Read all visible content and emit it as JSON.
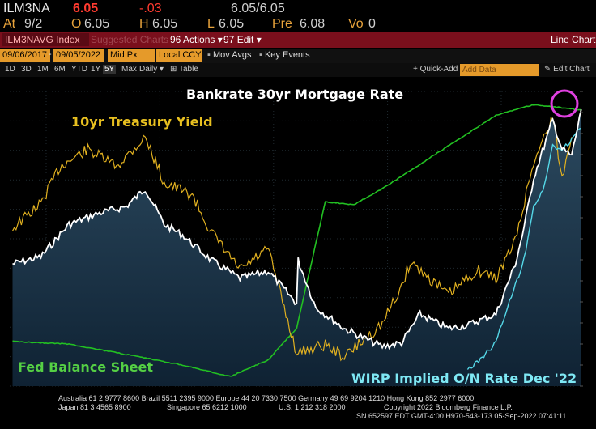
{
  "quote": {
    "ticker": "ILM3NA",
    "last": "6.05",
    "change": "-.03",
    "bid_ask": "6.05/6.05",
    "at_label": "At",
    "date": "9/2",
    "open_label": "O",
    "open": "6.05",
    "high_label": "H",
    "high": "6.05",
    "low_label": "L",
    "low": "6.05",
    "pre_label": "Pre",
    "pre": "6.08",
    "vol_label": "Vo",
    "vol": "0"
  },
  "toolbar": {
    "index": "ILM3NAVG Index",
    "suggested": "Suggested Charts",
    "actions": "Actions",
    "actions_num": "96",
    "edit": "Edit",
    "edit_num": "97",
    "view": "Line Chart"
  },
  "controls": {
    "start_date": "09/06/2017",
    "end_date": "09/05/2022",
    "price_field": "Mid Px",
    "currency": "Local CCY",
    "mov_avgs": "Mov Avgs",
    "key_events": "Key Events",
    "quick_add": "+ Quick-Add",
    "add_data": "Add Data",
    "edit_chart": "Edit Chart"
  },
  "periods": [
    "1D",
    "3D",
    "1M",
    "6M",
    "YTD",
    "1Y",
    "5Y",
    "Max",
    "Daily",
    "Table"
  ],
  "annotations": {
    "mortgage": "Bankrate 30yr Mortgage Rate",
    "treasury": "10yr Treasury Yield",
    "fed": "Fed Balance Sheet",
    "wirp": "WIRP Implied O/N Rate Dec '22"
  },
  "colors": {
    "mortgage": "#ffffff",
    "treasury": "#e0b020",
    "fed": "#22c022",
    "wirp": "#55d8e8",
    "area_top": "#2c4a60",
    "area_bottom": "#0f2233",
    "highlight_circle": "#e040e0",
    "toolbar_bg": "#7a0f1c",
    "field_bg": "#e59a2a"
  },
  "footer": {
    "line1": "Australia 61 2 9777 8600  Brazil 5511 2395 9000  Europe 44 20 7330 7500  Germany 49 69 9204 1210  Hong Kong 852 2977 6000",
    "line2a": "Japan 81 3 4565 8900",
    "line2b": "Singapore 65 6212 1000",
    "line2c": "U.S. 1 212 318 2000",
    "line2d": "Copyright 2022 Bloomberg Finance L.P.",
    "line3": "SN 652597 EDT  GMT-4:00 H970-543-173 05-Sep-2022 07:41:11"
  },
  "chart_data": {
    "type": "line",
    "x_range": [
      "2017-09-06",
      "2022-09-05"
    ],
    "grid": true,
    "series": [
      {
        "name": "Bankrate 30yr Mortgage Rate",
        "style": "white line with shaded area",
        "points": [
          [
            "2017-09",
            3.9
          ],
          [
            "2017-12",
            4.0
          ],
          [
            "2018-03",
            4.45
          ],
          [
            "2018-06",
            4.6
          ],
          [
            "2018-09",
            4.7
          ],
          [
            "2018-11",
            4.95
          ],
          [
            "2019-01",
            4.45
          ],
          [
            "2019-03",
            4.3
          ],
          [
            "2019-06",
            3.95
          ],
          [
            "2019-09",
            3.7
          ],
          [
            "2019-12",
            3.8
          ],
          [
            "2020-03",
            3.35
          ],
          [
            "2020-03-20",
            3.95
          ],
          [
            "2020-05",
            3.3
          ],
          [
            "2020-08",
            3.0
          ],
          [
            "2020-12",
            2.75
          ],
          [
            "2021-02",
            2.8
          ],
          [
            "2021-04",
            3.2
          ],
          [
            "2021-07",
            3.0
          ],
          [
            "2021-09",
            3.05
          ],
          [
            "2021-12",
            3.2
          ],
          [
            "2022-02",
            3.9
          ],
          [
            "2022-03",
            4.4
          ],
          [
            "2022-04",
            5.1
          ],
          [
            "2022-06",
            5.9
          ],
          [
            "2022-07",
            5.5
          ],
          [
            "2022-08",
            5.4
          ],
          [
            "2022-09",
            6.05
          ]
        ]
      },
      {
        "name": "10yr Treasury Yield",
        "style": "gold line",
        "points": [
          [
            "2017-09",
            2.1
          ],
          [
            "2017-12",
            2.4
          ],
          [
            "2018-02",
            2.85
          ],
          [
            "2018-05",
            3.05
          ],
          [
            "2018-08",
            2.85
          ],
          [
            "2018-11",
            3.2
          ],
          [
            "2019-01",
            2.65
          ],
          [
            "2019-04",
            2.5
          ],
          [
            "2019-06",
            2.05
          ],
          [
            "2019-09",
            1.6
          ],
          [
            "2019-12",
            1.85
          ],
          [
            "2020-03",
            0.6
          ],
          [
            "2020-06",
            0.7
          ],
          [
            "2020-08",
            0.55
          ],
          [
            "2020-12",
            0.95
          ],
          [
            "2021-02",
            1.4
          ],
          [
            "2021-03",
            1.7
          ],
          [
            "2021-07",
            1.3
          ],
          [
            "2021-10",
            1.6
          ],
          [
            "2021-12",
            1.5
          ],
          [
            "2022-02",
            1.95
          ],
          [
            "2022-04",
            2.9
          ],
          [
            "2022-06",
            3.45
          ],
          [
            "2022-07",
            2.7
          ],
          [
            "2022-08",
            3.2
          ]
        ]
      },
      {
        "name": "Fed Balance Sheet",
        "style": "green line",
        "points": [
          [
            "2017-09",
            4.45
          ],
          [
            "2018-03",
            4.4
          ],
          [
            "2018-09",
            4.2
          ],
          [
            "2019-03",
            4.0
          ],
          [
            "2019-08",
            3.78
          ],
          [
            "2019-12",
            4.1
          ],
          [
            "2020-03",
            4.7
          ],
          [
            "2020-06",
            7.1
          ],
          [
            "2020-09",
            7.05
          ],
          [
            "2020-12",
            7.35
          ],
          [
            "2021-06",
            8.05
          ],
          [
            "2021-12",
            8.75
          ],
          [
            "2022-04",
            8.95
          ],
          [
            "2022-09",
            8.85
          ]
        ]
      },
      {
        "name": "WIRP Implied O/N Rate Dec '22",
        "style": "cyan line",
        "points": [
          [
            "2021-09",
            0.05
          ],
          [
            "2021-10",
            0.15
          ],
          [
            "2021-12",
            0.45
          ],
          [
            "2022-01",
            0.9
          ],
          [
            "2022-02",
            1.3
          ],
          [
            "2022-03",
            1.7
          ],
          [
            "2022-04",
            2.5
          ],
          [
            "2022-05",
            2.7
          ],
          [
            "2022-06",
            3.4
          ],
          [
            "2022-07",
            3.3
          ],
          [
            "2022-08",
            3.5
          ],
          [
            "2022-09",
            3.65
          ]
        ]
      }
    ]
  }
}
